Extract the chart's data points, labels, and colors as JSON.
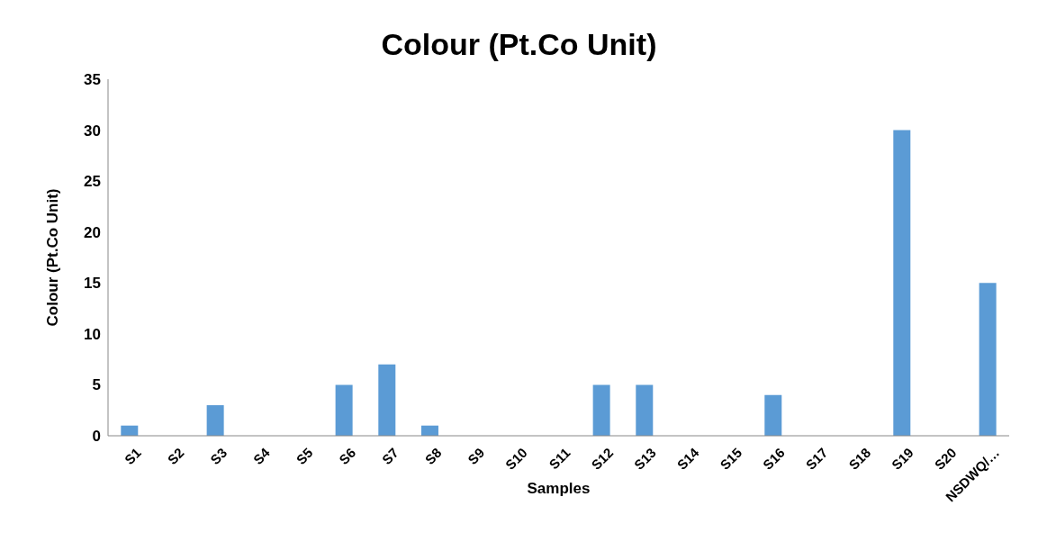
{
  "chart_data": {
    "type": "bar",
    "title": "Colour (Pt.Co Unit)",
    "xlabel": "Samples",
    "ylabel": "Colour (Pt.Co Unit)",
    "categories": [
      "S1",
      "S2",
      "S3",
      "S4",
      "S5",
      "S6",
      "S7",
      "S8",
      "S9",
      "S10",
      "S11",
      "S12",
      "S13",
      "S14",
      "S15",
      "S16",
      "S17",
      "S18",
      "S19",
      "S20",
      "NSDWQ/…"
    ],
    "values": [
      1,
      0,
      3,
      0,
      0,
      5,
      7,
      1,
      0,
      0,
      0,
      5,
      5,
      0,
      0,
      4,
      0,
      0,
      30,
      0,
      15
    ],
    "color": "#5b9bd5",
    "ylim": [
      0,
      35
    ],
    "yticks": [
      0,
      5,
      10,
      15,
      20,
      25,
      30,
      35
    ],
    "grid": false
  }
}
